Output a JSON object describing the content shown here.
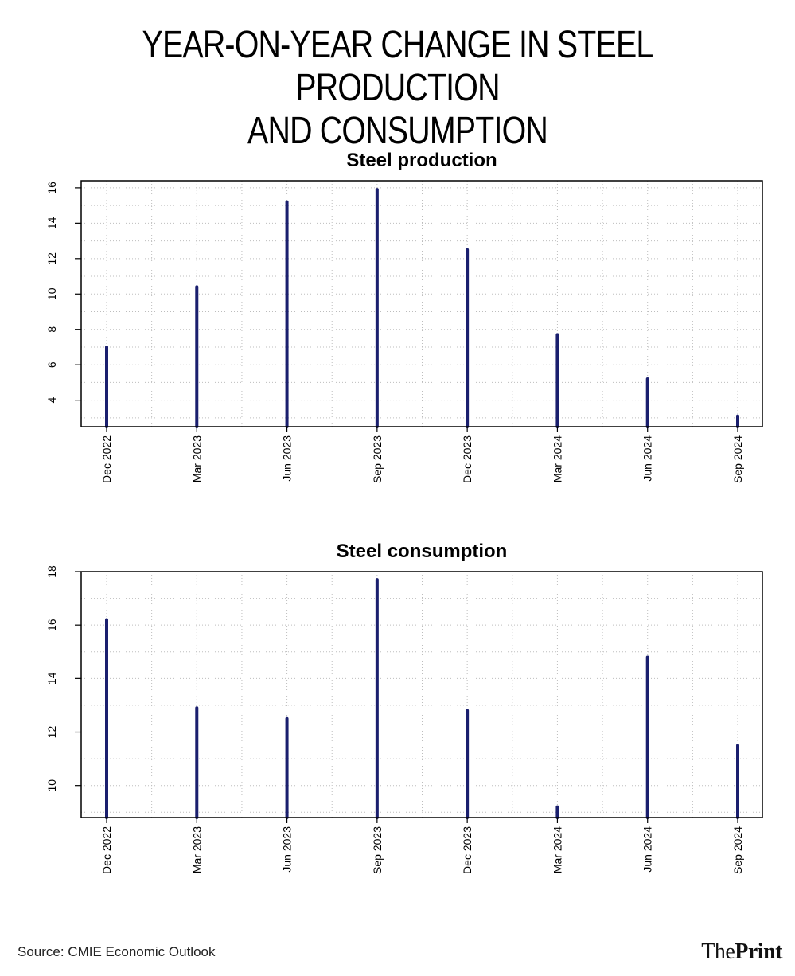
{
  "headline": {
    "line1": "YEAR-ON-YEAR CHANGE IN STEEL PRODUCTION",
    "line2": "AND CONSUMPTION"
  },
  "source": "Source: CMIE Economic Outlook",
  "brand": {
    "part1": "The",
    "part2": "Print"
  },
  "colors": {
    "bar": "#1a1f6e",
    "grid": "#bdbdbd",
    "axis": "#000000"
  },
  "chart_data": [
    {
      "type": "bar",
      "title": "Steel production",
      "categories": [
        "Dec 2022",
        "Mar 2023",
        "Jun 2023",
        "Sep 2023",
        "Dec 2023",
        "Mar 2024",
        "Jun 2024",
        "Sep 2024"
      ],
      "values": [
        7.0,
        10.4,
        15.2,
        15.9,
        12.5,
        7.7,
        5.2,
        3.1
      ],
      "ylim": [
        2.5,
        16.4
      ],
      "yticks": [
        4,
        6,
        8,
        10,
        12,
        14,
        16
      ],
      "grid": true,
      "xlabel": "",
      "ylabel": ""
    },
    {
      "type": "bar",
      "title": "Steel consumption",
      "categories": [
        "Dec 2022",
        "Mar 2023",
        "Jun 2023",
        "Sep 2023",
        "Dec 2023",
        "Mar 2024",
        "Jun 2024",
        "Sep 2024"
      ],
      "values": [
        16.2,
        12.9,
        12.5,
        17.7,
        12.8,
        9.2,
        14.8,
        11.5
      ],
      "ylim": [
        8.8,
        18.0
      ],
      "yticks": [
        10,
        12,
        14,
        16,
        18
      ],
      "grid": true,
      "xlabel": "",
      "ylabel": ""
    }
  ]
}
